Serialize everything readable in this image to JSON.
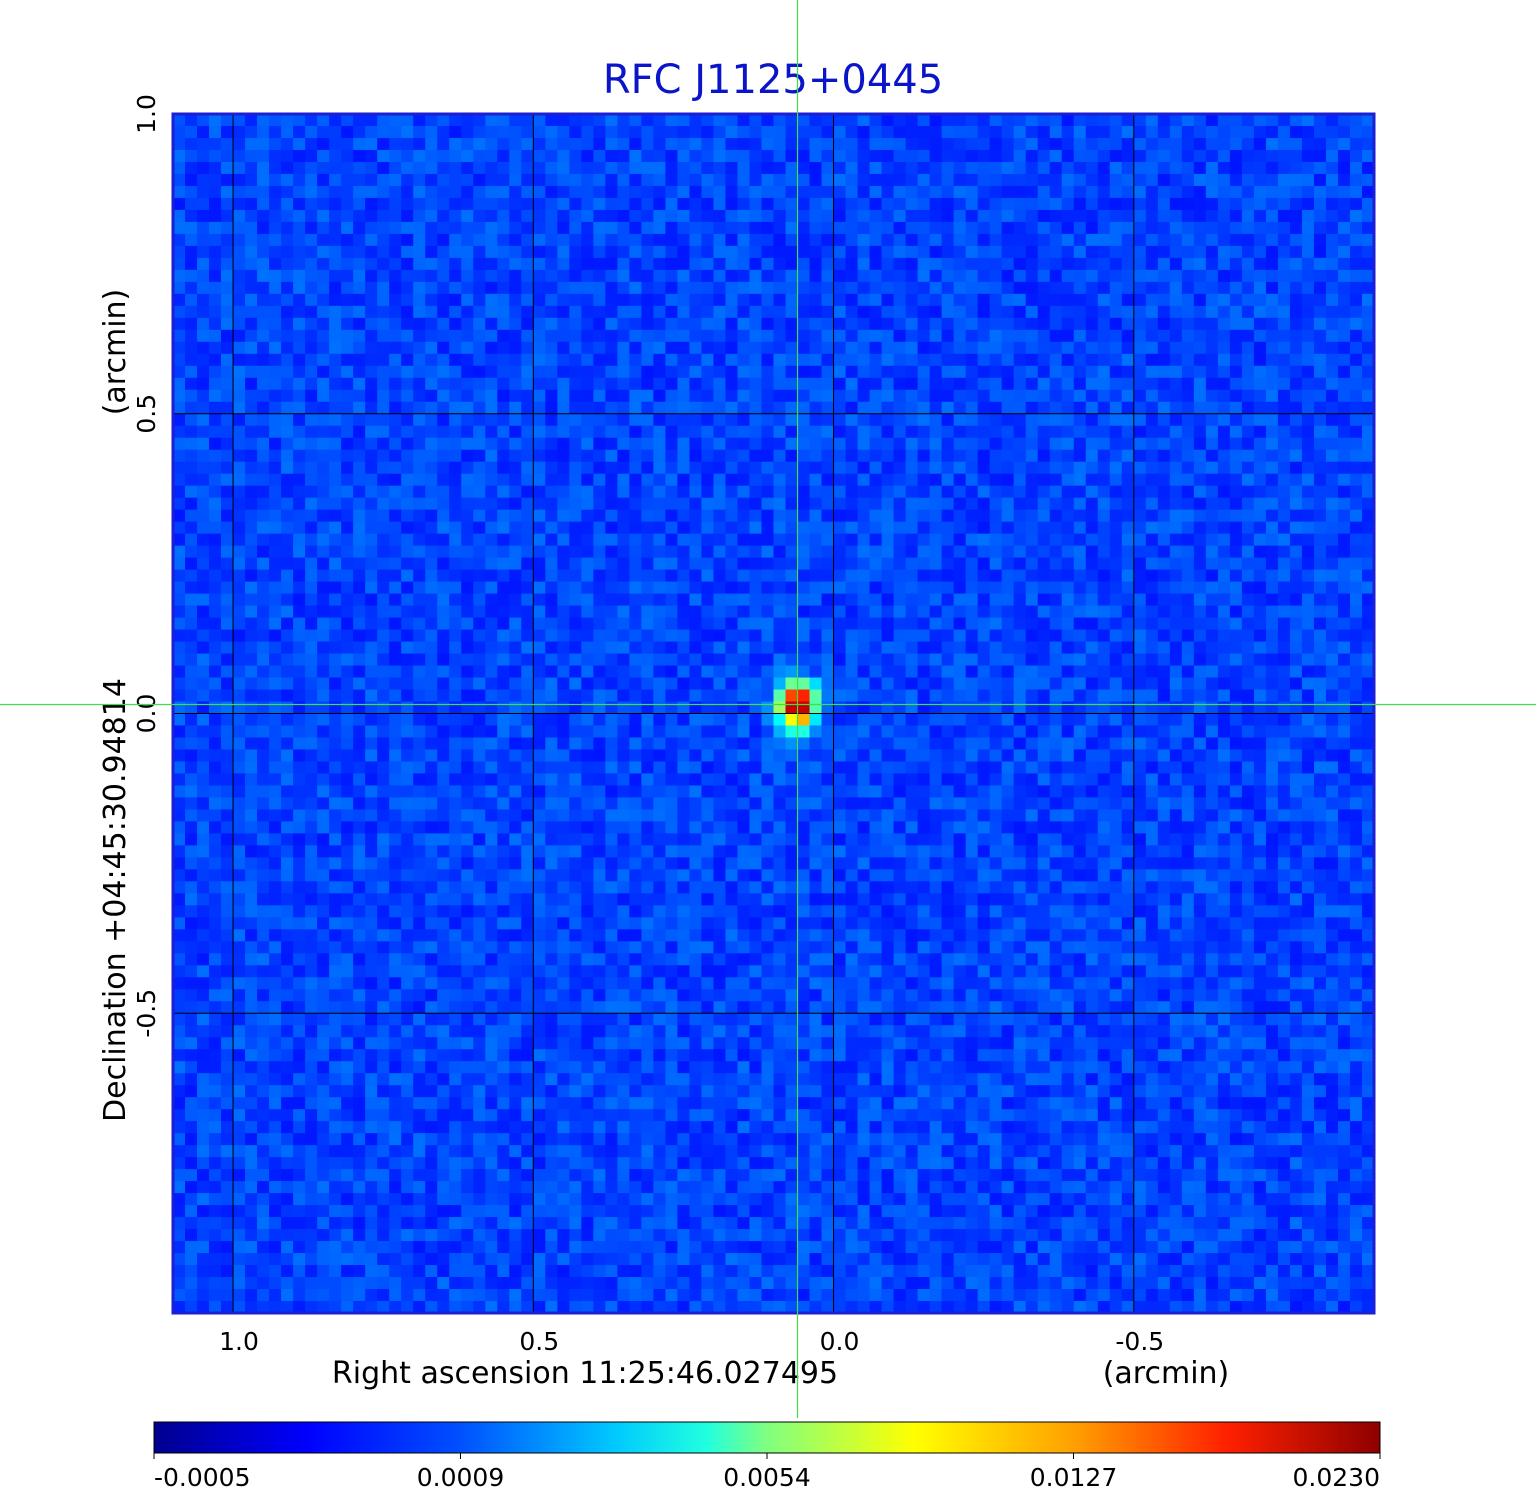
{
  "chart_data": {
    "type": "heatmap",
    "title": "RFC J1125+0445",
    "xlabel": "Right ascension  11:25:46.027495",
    "xunit": "(arcmin)",
    "ylabel": "Declination  +04:45:30.94814",
    "yunit": "(arcmin)",
    "xlim": [
      1.1,
      -0.9
    ],
    "ylim": [
      -1.0,
      1.0
    ],
    "x_ticks": [
      1.0,
      0.5,
      0.0,
      -0.5
    ],
    "x_tick_labels": [
      "1.0",
      "0.5",
      "0.0",
      "-0.5"
    ],
    "y_ticks": [
      1.0,
      0.5,
      0.0,
      -0.5
    ],
    "y_tick_labels": [
      "1.0",
      "0.5",
      "0.0",
      "-0.5"
    ],
    "grid": true,
    "crosshair": {
      "x": 0.06,
      "y": 0.015
    },
    "source_peak": {
      "x": 0.06,
      "y": 0.015,
      "value": 0.023
    },
    "colorbar": {
      "colormap": "jet",
      "tick_labels": [
        "-0.0005",
        "0.0009",
        "0.0054",
        "0.0127",
        "0.0230"
      ]
    }
  },
  "colors": {
    "title": "#0a14c8",
    "grid": "#000000",
    "crosshair": "#44dd44",
    "frame": "#1e1ed2"
  }
}
